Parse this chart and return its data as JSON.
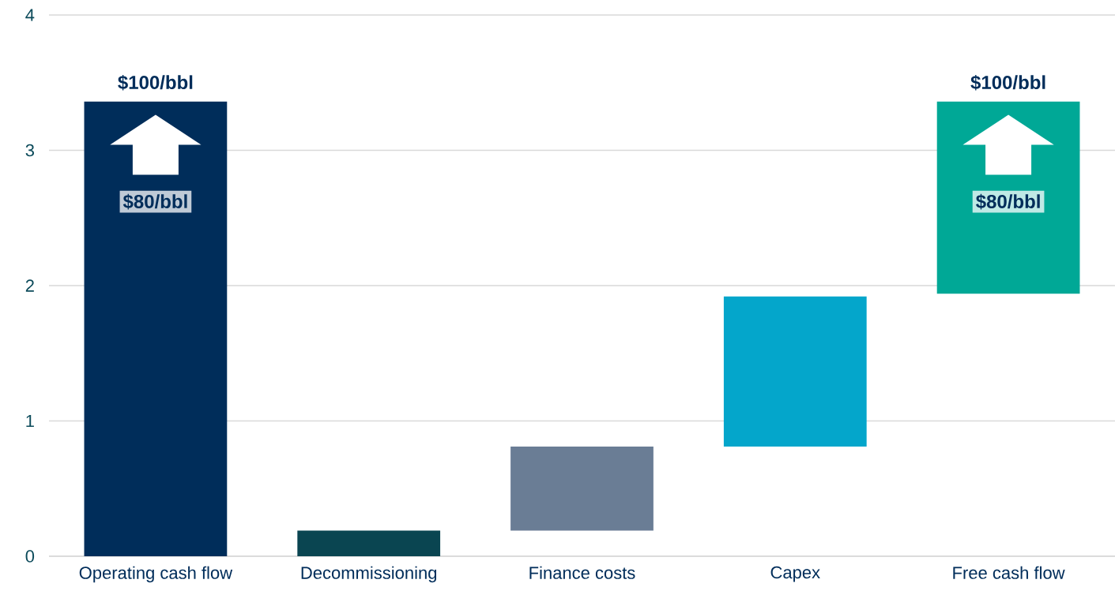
{
  "chart_data": {
    "type": "bar",
    "categories": [
      "Operating cash flow",
      "Decommissioning",
      "Finance costs",
      "Capex",
      "Free cash flow"
    ],
    "values": [
      3.36,
      0.19,
      0.62,
      1.11,
      1.42
    ],
    "base": [
      0,
      0,
      0.19,
      0.81,
      1.94
    ],
    "colors": [
      "#002d5a",
      "#0a4551",
      "#6a7d95",
      "#04a6cb",
      "#00a896"
    ],
    "ylim": [
      0,
      4
    ],
    "yticks": [
      0,
      1,
      2,
      3,
      4
    ],
    "grid": "y",
    "annotations": [
      "$100/bbl",
      "$80/bbl",
      "$100/bbl",
      "$80/bbl"
    ]
  }
}
